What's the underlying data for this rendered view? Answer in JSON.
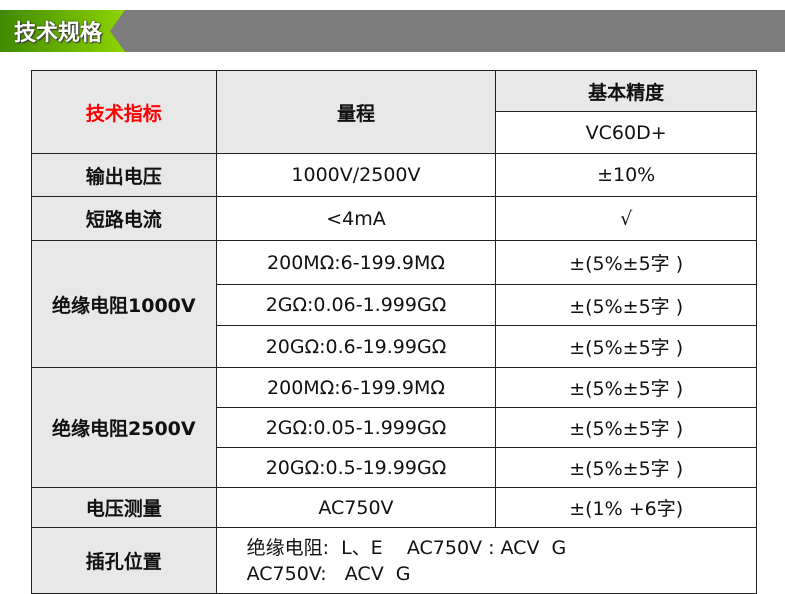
{
  "header": {
    "title": "技术规格"
  },
  "table": {
    "h_spec": "技术指标",
    "h_range": "量程",
    "h_accuracy": "基本精度",
    "h_model": "VC60D+",
    "rows": [
      {
        "name": "输出电压",
        "range": "1000V/2500V",
        "acc": "±10%"
      },
      {
        "name": "短路电流",
        "range": "<4mA",
        "acc": "√"
      }
    ],
    "ins1000": {
      "name": "绝缘电阻1000V",
      "items": [
        {
          "range": "200MΩ:6-199.9MΩ",
          "acc": "±(5%±5字 )"
        },
        {
          "range": "2GΩ:0.06-1.999GΩ",
          "acc": "±(5%±5字 )"
        },
        {
          "range": "20GΩ:0.6-19.99GΩ",
          "acc": "±(5%±5字 )"
        }
      ]
    },
    "ins2500": {
      "name": "绝缘电阻2500V",
      "items": [
        {
          "range": "200MΩ:6-199.9MΩ",
          "acc": "±(5%±5字 )"
        },
        {
          "range": "2GΩ:0.05-1.999GΩ",
          "acc": "±(5%±5字 )"
        },
        {
          "range": "20GΩ:0.5-19.99GΩ",
          "acc": "±(5%±5字 )"
        }
      ]
    },
    "voltage": {
      "name": "电压测量",
      "range": "AC750V",
      "acc": "±(1% +6字)"
    },
    "jack": {
      "name": "插孔位置",
      "line1": "绝缘电阻:  L、E    AC750V : ACV  G",
      "line2": "AC750V:   ACV  G"
    }
  }
}
